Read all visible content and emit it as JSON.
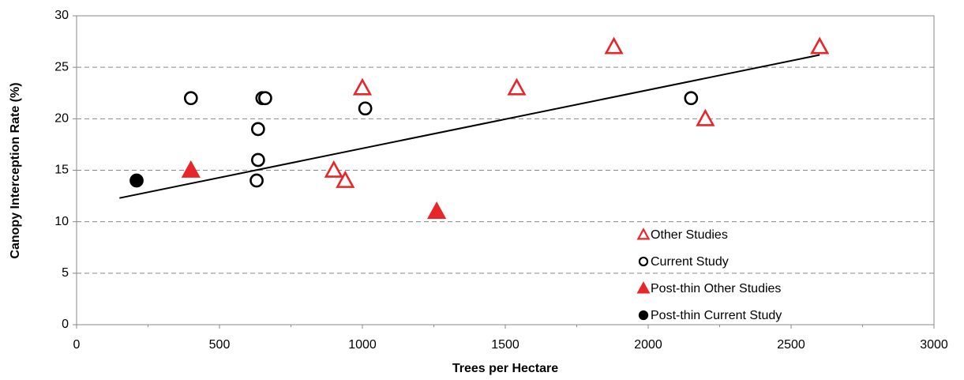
{
  "chart_data": {
    "type": "scatter",
    "x_label": "Trees per Hectare",
    "y_label": "Canopy Interception Rate (%)",
    "xlim": [
      0,
      3000
    ],
    "xticks": [
      0,
      500,
      1000,
      1500,
      2000,
      2500,
      3000
    ],
    "ylim": [
      0,
      30
    ],
    "yticks": [
      0,
      5,
      10,
      15,
      20,
      25,
      30
    ],
    "grid": true,
    "legend": "lower right",
    "series": [
      {
        "name": "Other Studies",
        "color": "#e8262a",
        "marker": "triangle",
        "filled": false,
        "x": [
          1000,
          1540,
          1880,
          2600,
          2200,
          900,
          940
        ],
        "values": [
          23,
          23,
          27,
          27,
          20,
          15,
          14
        ]
      },
      {
        "name": "Current Study",
        "color": "#000000",
        "marker": "circle",
        "filled": false,
        "x": [
          400,
          650,
          660,
          635,
          635,
          630,
          1010,
          2150
        ],
        "values": [
          22,
          22,
          22,
          19,
          16,
          14,
          21,
          22
        ]
      },
      {
        "name": "Post-thin Other Studies",
        "color": "#e8262a",
        "marker": "triangle",
        "filled": true,
        "x": [
          400,
          1260
        ],
        "values": [
          15,
          11
        ]
      },
      {
        "name": "Post-thin Current Study",
        "color": "#000000",
        "marker": "circle",
        "filled": true,
        "x": [
          210
        ],
        "values": [
          14
        ]
      }
    ],
    "trendline": {
      "color": "#000000",
      "x": [
        150,
        2600
      ],
      "values": [
        12.3,
        26.2
      ]
    }
  }
}
